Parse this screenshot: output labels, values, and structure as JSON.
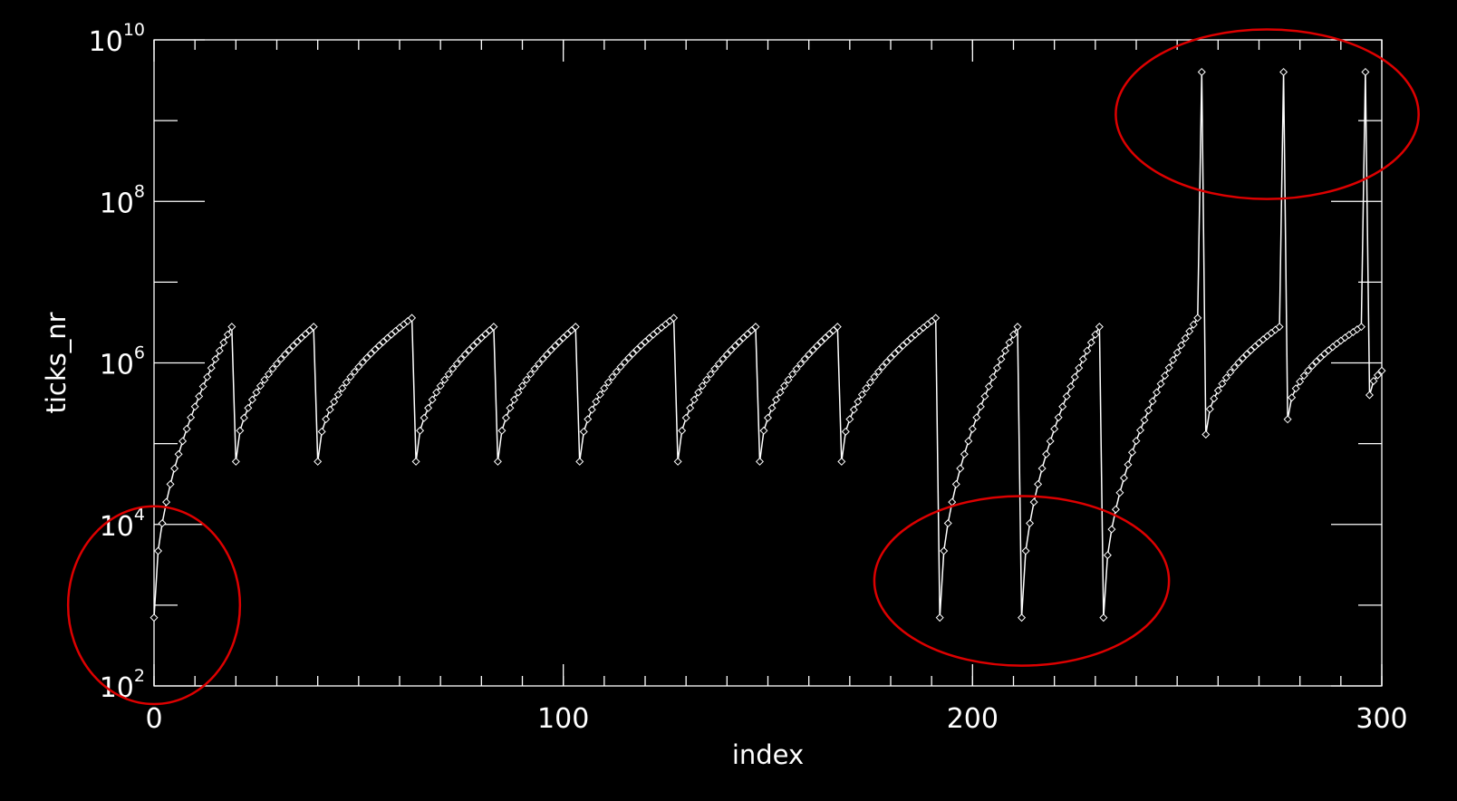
{
  "chart_data": {
    "type": "line",
    "marker": "diamond",
    "xlabel": "index",
    "ylabel": "ticks_nr",
    "xlim": [
      0,
      300
    ],
    "ylim": [
      100,
      10000000000
    ],
    "yscale": "log",
    "grid": false,
    "legend": "none",
    "xticks_major": [
      {
        "value": 0,
        "label": "0"
      },
      {
        "value": 100,
        "label": "100"
      },
      {
        "value": 200,
        "label": "200"
      },
      {
        "value": 300,
        "label": "300"
      }
    ],
    "xticks_minor_step": 10,
    "yticks_major": [
      {
        "value": 100,
        "base": "10",
        "exp": "2"
      },
      {
        "value": 10000,
        "base": "10",
        "exp": "4"
      },
      {
        "value": 1000000,
        "base": "10",
        "exp": "6"
      },
      {
        "value": 100000000,
        "base": "10",
        "exp": "8"
      },
      {
        "value": 10000000000,
        "base": "10",
        "exp": "10"
      }
    ],
    "yticks_minor": [
      1000,
      100000,
      10000000,
      1000000000
    ],
    "segments": [
      {
        "start_index": 0,
        "end_index": 19,
        "start_value": 700,
        "end_value": 2800000
      },
      {
        "start_index": 20,
        "end_index": 39,
        "start_value": 60000,
        "end_value": 2800000
      },
      {
        "start_index": 40,
        "end_index": 63,
        "start_value": 60000,
        "end_value": 3600000
      },
      {
        "start_index": 64,
        "end_index": 83,
        "start_value": 60000,
        "end_value": 2800000
      },
      {
        "start_index": 84,
        "end_index": 103,
        "start_value": 60000,
        "end_value": 2800000
      },
      {
        "start_index": 104,
        "end_index": 127,
        "start_value": 60000,
        "end_value": 3600000
      },
      {
        "start_index": 128,
        "end_index": 147,
        "start_value": 60000,
        "end_value": 2800000
      },
      {
        "start_index": 148,
        "end_index": 167,
        "start_value": 60000,
        "end_value": 2800000
      },
      {
        "start_index": 168,
        "end_index": 191,
        "start_value": 60000,
        "end_value": 3600000
      },
      {
        "start_index": 192,
        "end_index": 211,
        "start_value": 700,
        "end_value": 2800000
      },
      {
        "start_index": 212,
        "end_index": 231,
        "start_value": 700,
        "end_value": 2800000
      },
      {
        "start_index": 232,
        "end_index": 255,
        "start_value": 700,
        "end_value": 3600000
      },
      {
        "start_index": 256,
        "end_index": 256,
        "start_value": 4000000000,
        "end_value": 4000000000
      },
      {
        "start_index": 257,
        "end_index": 275,
        "start_value": 130000,
        "end_value": 2800000
      },
      {
        "start_index": 276,
        "end_index": 276,
        "start_value": 4000000000,
        "end_value": 4000000000
      },
      {
        "start_index": 277,
        "end_index": 295,
        "start_value": 200000,
        "end_value": 2800000
      },
      {
        "start_index": 296,
        "end_index": 296,
        "start_value": 4000000000,
        "end_value": 4000000000
      },
      {
        "start_index": 297,
        "end_index": 300,
        "start_value": 400000,
        "end_value": 800000
      }
    ],
    "annotations": [
      {
        "shape": "ellipse",
        "color": "#dd0000",
        "cx": 0,
        "cy": 1000,
        "rx_data": 21,
        "ry_decades": 2.45
      },
      {
        "shape": "ellipse",
        "color": "#dd0000",
        "cx": 212,
        "cy": 2000,
        "rx_data": 36,
        "ry_decades": 2.1
      },
      {
        "shape": "ellipse",
        "color": "#dd0000",
        "cx": 272,
        "cy": 1200000000,
        "rx_data": 37,
        "ry_decades": 2.1
      }
    ]
  }
}
